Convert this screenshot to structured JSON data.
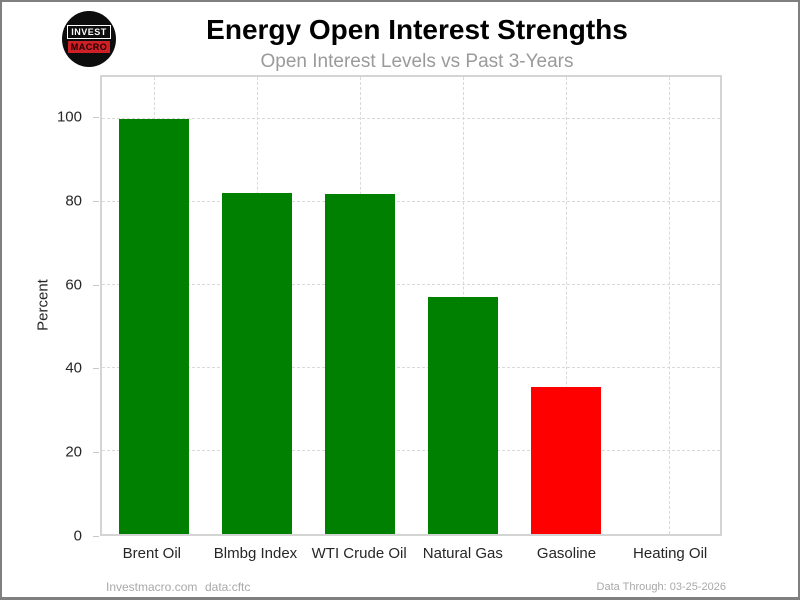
{
  "header": {
    "title": "Energy Open Interest Strengths",
    "subtitle": "Open Interest Levels vs Past 3-Years"
  },
  "logo": {
    "line1": "INVEST",
    "line2": "MACRO",
    "circle_color": "#0d0d0d",
    "accent_color": "#cf2027"
  },
  "chart_data": {
    "type": "bar",
    "title": "Energy Open Interest Strengths",
    "subtitle": "Open Interest Levels vs Past 3-Years",
    "categories": [
      "Brent Oil",
      "Blmbg Index",
      "WTI Crude Oil",
      "Natural Gas",
      "Gasoline",
      "Heating Oil"
    ],
    "values": [
      100,
      82.1,
      81.8,
      57,
      35.3,
      0
    ],
    "bar_colors": [
      "#008000",
      "#008000",
      "#008000",
      "#008000",
      "#ff0000",
      "#008000"
    ],
    "positive_color": "#008000",
    "negative_color": "#ff0000",
    "xlabel": "",
    "ylabel": "Percent",
    "yticks": [
      0,
      20,
      40,
      60,
      80,
      100
    ],
    "ylim": [
      0,
      110
    ],
    "grid": "dashed",
    "grid_color": "#d9d9d9",
    "legend": "none"
  },
  "footer": {
    "site": "Investmacro.com",
    "source": "data:cftc",
    "data_through": "Data Through: 03-25-2026"
  }
}
